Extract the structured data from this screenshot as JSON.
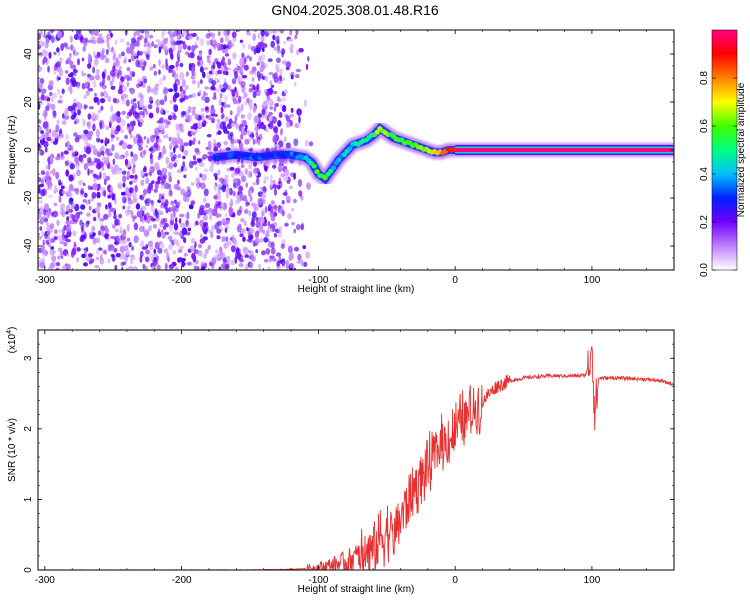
{
  "title": "GN04.2025.308.01.48.R16",
  "chart_data": [
    {
      "type": "heatmap",
      "xlabel": "Height of straight line (km)",
      "ylabel": "Frequency (Hz)",
      "xlim": [
        -305,
        160
      ],
      "ylim": [
        -50,
        50
      ],
      "xticks": [
        -300,
        -200,
        -100,
        0,
        100
      ],
      "yticks": [
        -40,
        -20,
        0,
        20,
        40
      ],
      "grid": false,
      "colorbar": {
        "label": "Normalized spectral amplitude",
        "range": [
          0,
          1
        ],
        "ticks": [
          0.0,
          0.2,
          0.4,
          0.6,
          0.8
        ],
        "colors": [
          "#ffffff",
          "#c080ff",
          "#7000ff",
          "#0020ff",
          "#00c0ff",
          "#00ff80",
          "#40ff00",
          "#ffff00",
          "#ff8000",
          "#ff0000",
          "#ff0080"
        ]
      },
      "noise_region": {
        "x_range": [
          -305,
          -115
        ],
        "amplitude": 0.15
      },
      "ridge": {
        "x": [
          -175,
          -160,
          -145,
          -130,
          -120,
          -110,
          -105,
          -100,
          -95,
          -90,
          -85,
          -80,
          -75,
          -70,
          -65,
          -60,
          -55,
          -50,
          -45,
          -40,
          -35,
          -30,
          -25,
          -20,
          -15,
          -10,
          -5,
          0,
          20,
          60,
          100,
          160
        ],
        "y": [
          -3,
          -2,
          -3,
          -2,
          -2,
          -3,
          -5,
          -10,
          -12,
          -8,
          -4,
          -1,
          2,
          3,
          4,
          6,
          9,
          7,
          5,
          4,
          3,
          2,
          1,
          0,
          -1,
          -1,
          0,
          0,
          0,
          0,
          0,
          0
        ],
        "amplitude": [
          0.3,
          0.3,
          0.3,
          0.3,
          0.35,
          0.4,
          0.5,
          0.6,
          0.55,
          0.45,
          0.4,
          0.4,
          0.45,
          0.5,
          0.5,
          0.55,
          0.65,
          0.6,
          0.55,
          0.55,
          0.55,
          0.6,
          0.65,
          0.7,
          0.7,
          0.75,
          0.85,
          0.95,
          1.0,
          1.0,
          1.0,
          1.0
        ]
      }
    },
    {
      "type": "line",
      "xlabel": "Height of straight line (km)",
      "ylabel": "SNR (10 * v/v)",
      "y_multiplier": "(x10",
      "y_multiplier_exp": "4",
      "y_multiplier_close": ")",
      "xlim": [
        -305,
        160
      ],
      "ylim": [
        0,
        3.4
      ],
      "xticks": [
        -300,
        -200,
        -100,
        0,
        100
      ],
      "yticks": [
        0,
        1,
        2,
        3
      ],
      "grid": false,
      "series": [
        {
          "color": "#e83030",
          "x": [
            -305,
            -150,
            -120,
            -100,
            -90,
            -80,
            -70,
            -60,
            -55,
            -50,
            -45,
            -40,
            -35,
            -30,
            -25,
            -20,
            -15,
            -10,
            -5,
            0,
            5,
            10,
            15,
            20,
            25,
            30,
            40,
            50,
            60,
            70,
            80,
            90,
            95,
            98,
            100,
            102,
            105,
            110,
            120,
            130,
            140,
            150,
            160
          ],
          "y": [
            0.0,
            0.0,
            0.01,
            0.03,
            0.06,
            0.12,
            0.2,
            0.3,
            0.45,
            0.55,
            0.5,
            0.75,
            0.95,
            1.15,
            1.3,
            1.45,
            1.6,
            1.8,
            1.85,
            1.95,
            2.1,
            2.2,
            2.3,
            2.4,
            2.5,
            2.6,
            2.68,
            2.72,
            2.74,
            2.75,
            2.75,
            2.75,
            2.76,
            2.9,
            3.3,
            2.2,
            2.72,
            2.72,
            2.72,
            2.71,
            2.7,
            2.68,
            2.63
          ]
        }
      ]
    }
  ]
}
